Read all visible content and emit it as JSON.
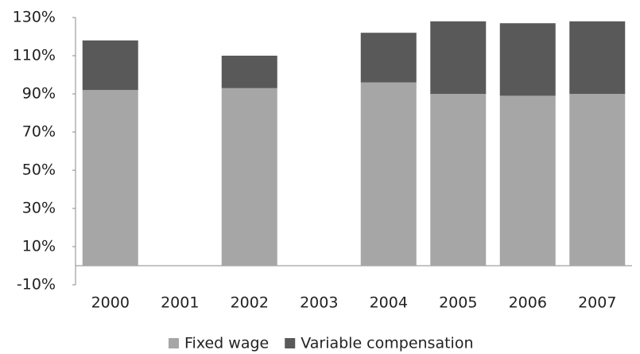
{
  "chart_data": {
    "type": "stacked_bar",
    "categories": [
      "2000",
      "2001",
      "2002",
      "2003",
      "2004",
      "2005",
      "2006",
      "2007"
    ],
    "series": [
      {
        "name": "Fixed wage",
        "color": "#a6a6a6",
        "values": [
          92,
          null,
          93,
          null,
          96,
          90,
          89,
          90
        ]
      },
      {
        "name": "Variable compensation",
        "color": "#595959",
        "values": [
          26,
          null,
          17,
          null,
          26,
          38,
          38,
          38
        ]
      }
    ],
    "ylim": [
      -10,
      130
    ],
    "yticks": [
      {
        "value": -10,
        "label": "-10%"
      },
      {
        "value": 10,
        "label": "10%"
      },
      {
        "value": 30,
        "label": "30%"
      },
      {
        "value": 50,
        "label": "50%"
      },
      {
        "value": 70,
        "label": "70%"
      },
      {
        "value": 90,
        "label": "90%"
      },
      {
        "value": 110,
        "label": "110%"
      },
      {
        "value": 130,
        "label": "130%"
      }
    ],
    "grid": false,
    "legend": "bottom"
  }
}
